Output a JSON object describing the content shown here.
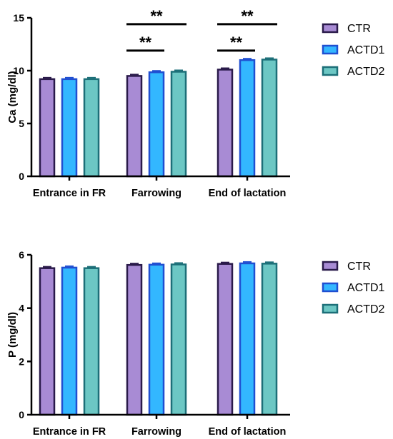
{
  "series_styles": [
    {
      "name": "CTR",
      "fill": "#a88bd4",
      "stroke": "#2a1a4a"
    },
    {
      "name": "ACTD1",
      "fill": "#33b7ff",
      "stroke": "#1f4fd1"
    },
    {
      "name": "ACTD2",
      "fill": "#6cc7c4",
      "stroke": "#1c6f78"
    }
  ],
  "chart_data": [
    {
      "type": "bar",
      "categories": [
        "Entrance in FR",
        "Farrowing",
        "End of lactation"
      ],
      "ylabel": "Ca (mg/dl)",
      "ylim": [
        0,
        15
      ],
      "yticks": [
        0,
        5,
        10,
        15
      ],
      "series": [
        {
          "name": "CTR",
          "values": [
            9.2,
            9.5,
            10.1
          ]
        },
        {
          "name": "ACTD1",
          "values": [
            9.2,
            9.85,
            11.0
          ]
        },
        {
          "name": "ACTD2",
          "values": [
            9.2,
            9.9,
            11.05
          ]
        }
      ],
      "legend": "right",
      "significance": [
        {
          "category": 1,
          "from": 0,
          "to": 1,
          "label": "**",
          "y": 11.9
        },
        {
          "category": 1,
          "from": 0,
          "to": 2,
          "label": "**",
          "y": 14.4
        },
        {
          "category": 2,
          "from": 0,
          "to": 1,
          "label": "**",
          "y": 11.9
        },
        {
          "category": 2,
          "from": 0,
          "to": 2,
          "label": "**",
          "y": 14.4
        }
      ]
    },
    {
      "type": "bar",
      "categories": [
        "Entrance in FR",
        "Farrowing",
        "End of lactation"
      ],
      "ylabel": "P (mg/dl)",
      "ylim": [
        0,
        6
      ],
      "yticks": [
        0,
        2,
        4,
        6
      ],
      "series": [
        {
          "name": "CTR",
          "values": [
            5.5,
            5.62,
            5.66
          ]
        },
        {
          "name": "ACTD1",
          "values": [
            5.52,
            5.63,
            5.68
          ]
        },
        {
          "name": "ACTD2",
          "values": [
            5.5,
            5.64,
            5.67
          ]
        }
      ],
      "legend": "right",
      "significance": []
    }
  ]
}
